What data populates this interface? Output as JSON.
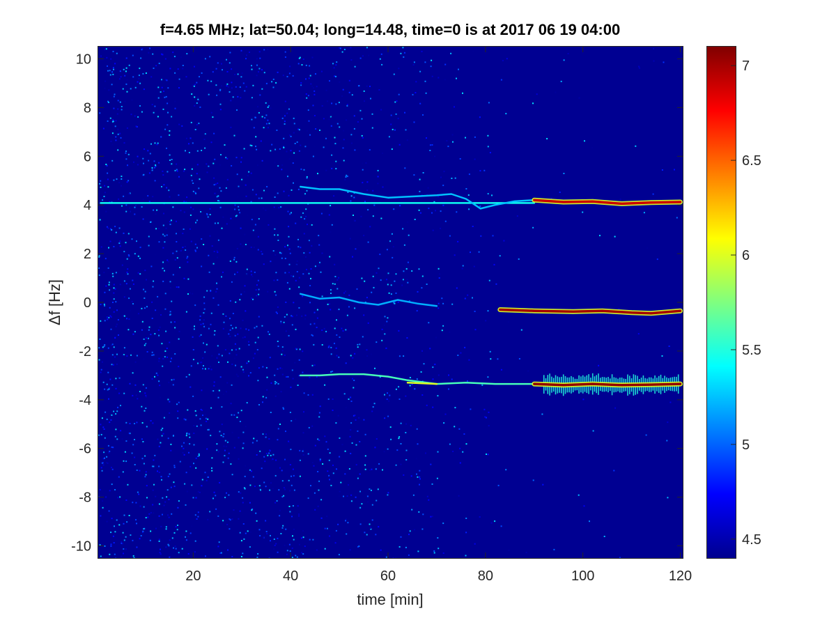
{
  "chart_data": {
    "type": "heatmap",
    "title": "f=4.65 MHz;  lat=50.04; long=14.48, time=0 is at 2017 06 19 04:00",
    "xlabel": "time [min]",
    "ylabel": "Δf [Hz]",
    "xlim": [
      0.5,
      120.5
    ],
    "ylim": [
      -10.5,
      10.5
    ],
    "x_ticks": [
      20,
      40,
      60,
      80,
      100,
      120
    ],
    "y_ticks": [
      -10,
      -8,
      -6,
      -4,
      -2,
      0,
      2,
      4,
      6,
      8,
      10
    ],
    "colorbar": {
      "colormap": "jet",
      "clim": [
        4.4,
        7.1
      ],
      "ticks": [
        4.5,
        5,
        5.5,
        6,
        6.5,
        7
      ]
    },
    "background_level": 4.45,
    "noise": {
      "max_level": 5.35,
      "strong_until_min": 42,
      "fades_by_min": 90
    },
    "traces": [
      {
        "segments": [
          {
            "points": [
              [
                1,
                4.08
              ],
              [
                90,
                4.08
              ]
            ],
            "level": 5.45
          }
        ]
      },
      {
        "segments": [
          {
            "points": [
              [
                42,
                4.75
              ],
              [
                46,
                4.65
              ],
              [
                50,
                4.65
              ],
              [
                55,
                4.45
              ],
              [
                60,
                4.3
              ],
              [
                65,
                4.35
              ],
              [
                70,
                4.4
              ],
              [
                73,
                4.45
              ],
              [
                76,
                4.25
              ],
              [
                79,
                3.85
              ],
              [
                82,
                4.0
              ],
              [
                86,
                4.15
              ],
              [
                90,
                4.2
              ]
            ],
            "level": 5.25
          },
          {
            "points": [
              [
                90,
                4.2
              ],
              [
                96,
                4.12
              ],
              [
                102,
                4.14
              ],
              [
                108,
                4.05
              ],
              [
                114,
                4.1
              ],
              [
                120,
                4.12
              ]
            ],
            "level": 6.9
          }
        ]
      },
      {
        "segments": [
          {
            "points": [
              [
                42,
                0.35
              ],
              [
                46,
                0.15
              ],
              [
                50,
                0.2
              ],
              [
                54,
                0.0
              ],
              [
                58,
                -0.1
              ],
              [
                62,
                0.1
              ],
              [
                66,
                -0.05
              ],
              [
                70,
                -0.15
              ]
            ],
            "level": 5.2
          },
          {
            "points": [
              [
                83,
                -0.3
              ],
              [
                90,
                -0.35
              ],
              [
                98,
                -0.38
              ],
              [
                104,
                -0.35
              ],
              [
                110,
                -0.42
              ],
              [
                114,
                -0.45
              ],
              [
                120,
                -0.35
              ]
            ],
            "level": 7.0
          }
        ]
      },
      {
        "segments": [
          {
            "points": [
              [
                42,
                -3.0
              ],
              [
                46,
                -3.0
              ],
              [
                50,
                -2.95
              ],
              [
                55,
                -2.95
              ],
              [
                60,
                -3.05
              ],
              [
                64,
                -3.2
              ],
              [
                70,
                -3.35
              ],
              [
                76,
                -3.3
              ],
              [
                82,
                -3.35
              ],
              [
                90,
                -3.35
              ]
            ],
            "level": 5.6
          },
          {
            "points": [
              [
                64,
                -3.3
              ],
              [
                70,
                -3.35
              ]
            ],
            "level": 6.0
          },
          {
            "points": [
              [
                90,
                -3.35
              ],
              [
                96,
                -3.4
              ],
              [
                102,
                -3.35
              ],
              [
                108,
                -3.4
              ],
              [
                114,
                -3.38
              ],
              [
                120,
                -3.35
              ]
            ],
            "level": 7.05
          }
        ]
      }
    ],
    "spread": {
      "trace_index": 3,
      "x_range": [
        92,
        120
      ],
      "half_width_hz": 0.45,
      "level": 5.5
    }
  }
}
